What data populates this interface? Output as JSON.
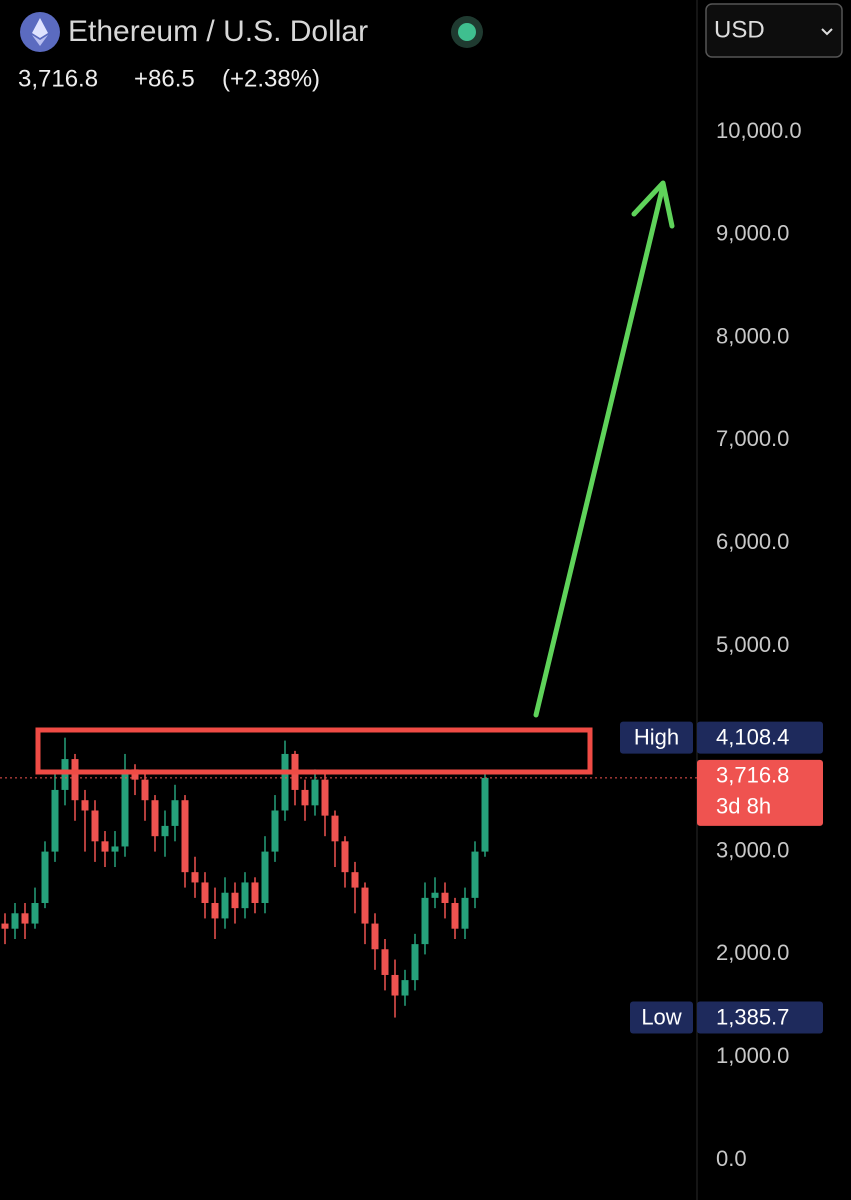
{
  "chart_data": {
    "type": "candlestick",
    "title": "Ethereum / U.S. Dollar",
    "currency": "USD",
    "last": "3,716.8",
    "change": "+86.5",
    "change_pct": "(+2.38%)",
    "up_color": "#26a17b",
    "down_color": "#ef5350",
    "open": [
      2300,
      2250,
      2400,
      2300,
      2500,
      3000,
      3600,
      3900,
      3500,
      3400,
      3100,
      3000,
      3050,
      3800,
      3700,
      3500,
      3150,
      3250,
      3500,
      2800,
      2700,
      2500,
      2350,
      2600,
      2450,
      2700,
      2500,
      3000,
      3400,
      3950,
      3600,
      3450,
      3700,
      3350,
      3100,
      2800,
      2650,
      2300,
      2050,
      1800,
      1600,
      1750,
      2100,
      2550,
      2600,
      2500,
      2250,
      2550,
      3000
    ],
    "high": [
      2400,
      2500,
      2500,
      2650,
      3100,
      3750,
      4108.4,
      3950,
      3600,
      3500,
      3200,
      3200,
      3950,
      3850,
      3750,
      3550,
      3400,
      3650,
      3550,
      2950,
      2800,
      2650,
      2750,
      2700,
      2800,
      2750,
      3150,
      3550,
      4080,
      3980,
      3700,
      3800,
      3750,
      3400,
      3150,
      2900,
      2700,
      2400,
      2150,
      1950,
      1850,
      2200,
      2700,
      2750,
      2700,
      2550,
      2650,
      3100,
      3760
    ],
    "low": [
      2100,
      2150,
      2150,
      2250,
      2450,
      2900,
      3450,
      3300,
      3000,
      2900,
      2850,
      2850,
      2950,
      3550,
      3300,
      3000,
      2950,
      3100,
      2650,
      2550,
      2350,
      2150,
      2250,
      2300,
      2350,
      2400,
      2400,
      2900,
      3300,
      3450,
      3300,
      3350,
      3150,
      2850,
      2650,
      2400,
      2100,
      1850,
      1650,
      1385.7,
      1500,
      1650,
      2000,
      2450,
      2350,
      2150,
      2150,
      2450,
      2950
    ],
    "close": [
      2250,
      2400,
      2300,
      2500,
      3000,
      3600,
      3900,
      3500,
      3400,
      3100,
      3000,
      3050,
      3800,
      3700,
      3500,
      3150,
      3250,
      3500,
      2800,
      2700,
      2500,
      2350,
      2600,
      2450,
      2700,
      2500,
      3000,
      3400,
      3950,
      3600,
      3450,
      3700,
      3350,
      3100,
      2800,
      2650,
      2300,
      2050,
      1800,
      1600,
      1750,
      2100,
      2550,
      2600,
      2500,
      2250,
      2550,
      3000,
      3716.8
    ],
    "ylim": [
      -389,
      11284
    ],
    "yticks": [
      {
        "value": 0,
        "label": "0.0"
      },
      {
        "value": 1000,
        "label": "1,000.0"
      },
      {
        "value": 2000,
        "label": "2,000.0"
      },
      {
        "value": 3000,
        "label": "3,000.0"
      },
      {
        "value": 5000,
        "label": "5,000.0"
      },
      {
        "value": 6000,
        "label": "6,000.0"
      },
      {
        "value": 7000,
        "label": "7,000.0"
      },
      {
        "value": 8000,
        "label": "8,000.0"
      },
      {
        "value": 9000,
        "label": "9,000.0"
      },
      {
        "value": 10000,
        "label": "10,000.0"
      }
    ],
    "high_marker": {
      "name": "High",
      "value": 4108.4,
      "label": "4,108.4"
    },
    "low_marker": {
      "name": "Low",
      "value": 1385.7,
      "label": "1,385.7"
    },
    "price_tag": {
      "value": 3716.8,
      "label": "3,716.8"
    },
    "countdown": "3d 8h"
  }
}
